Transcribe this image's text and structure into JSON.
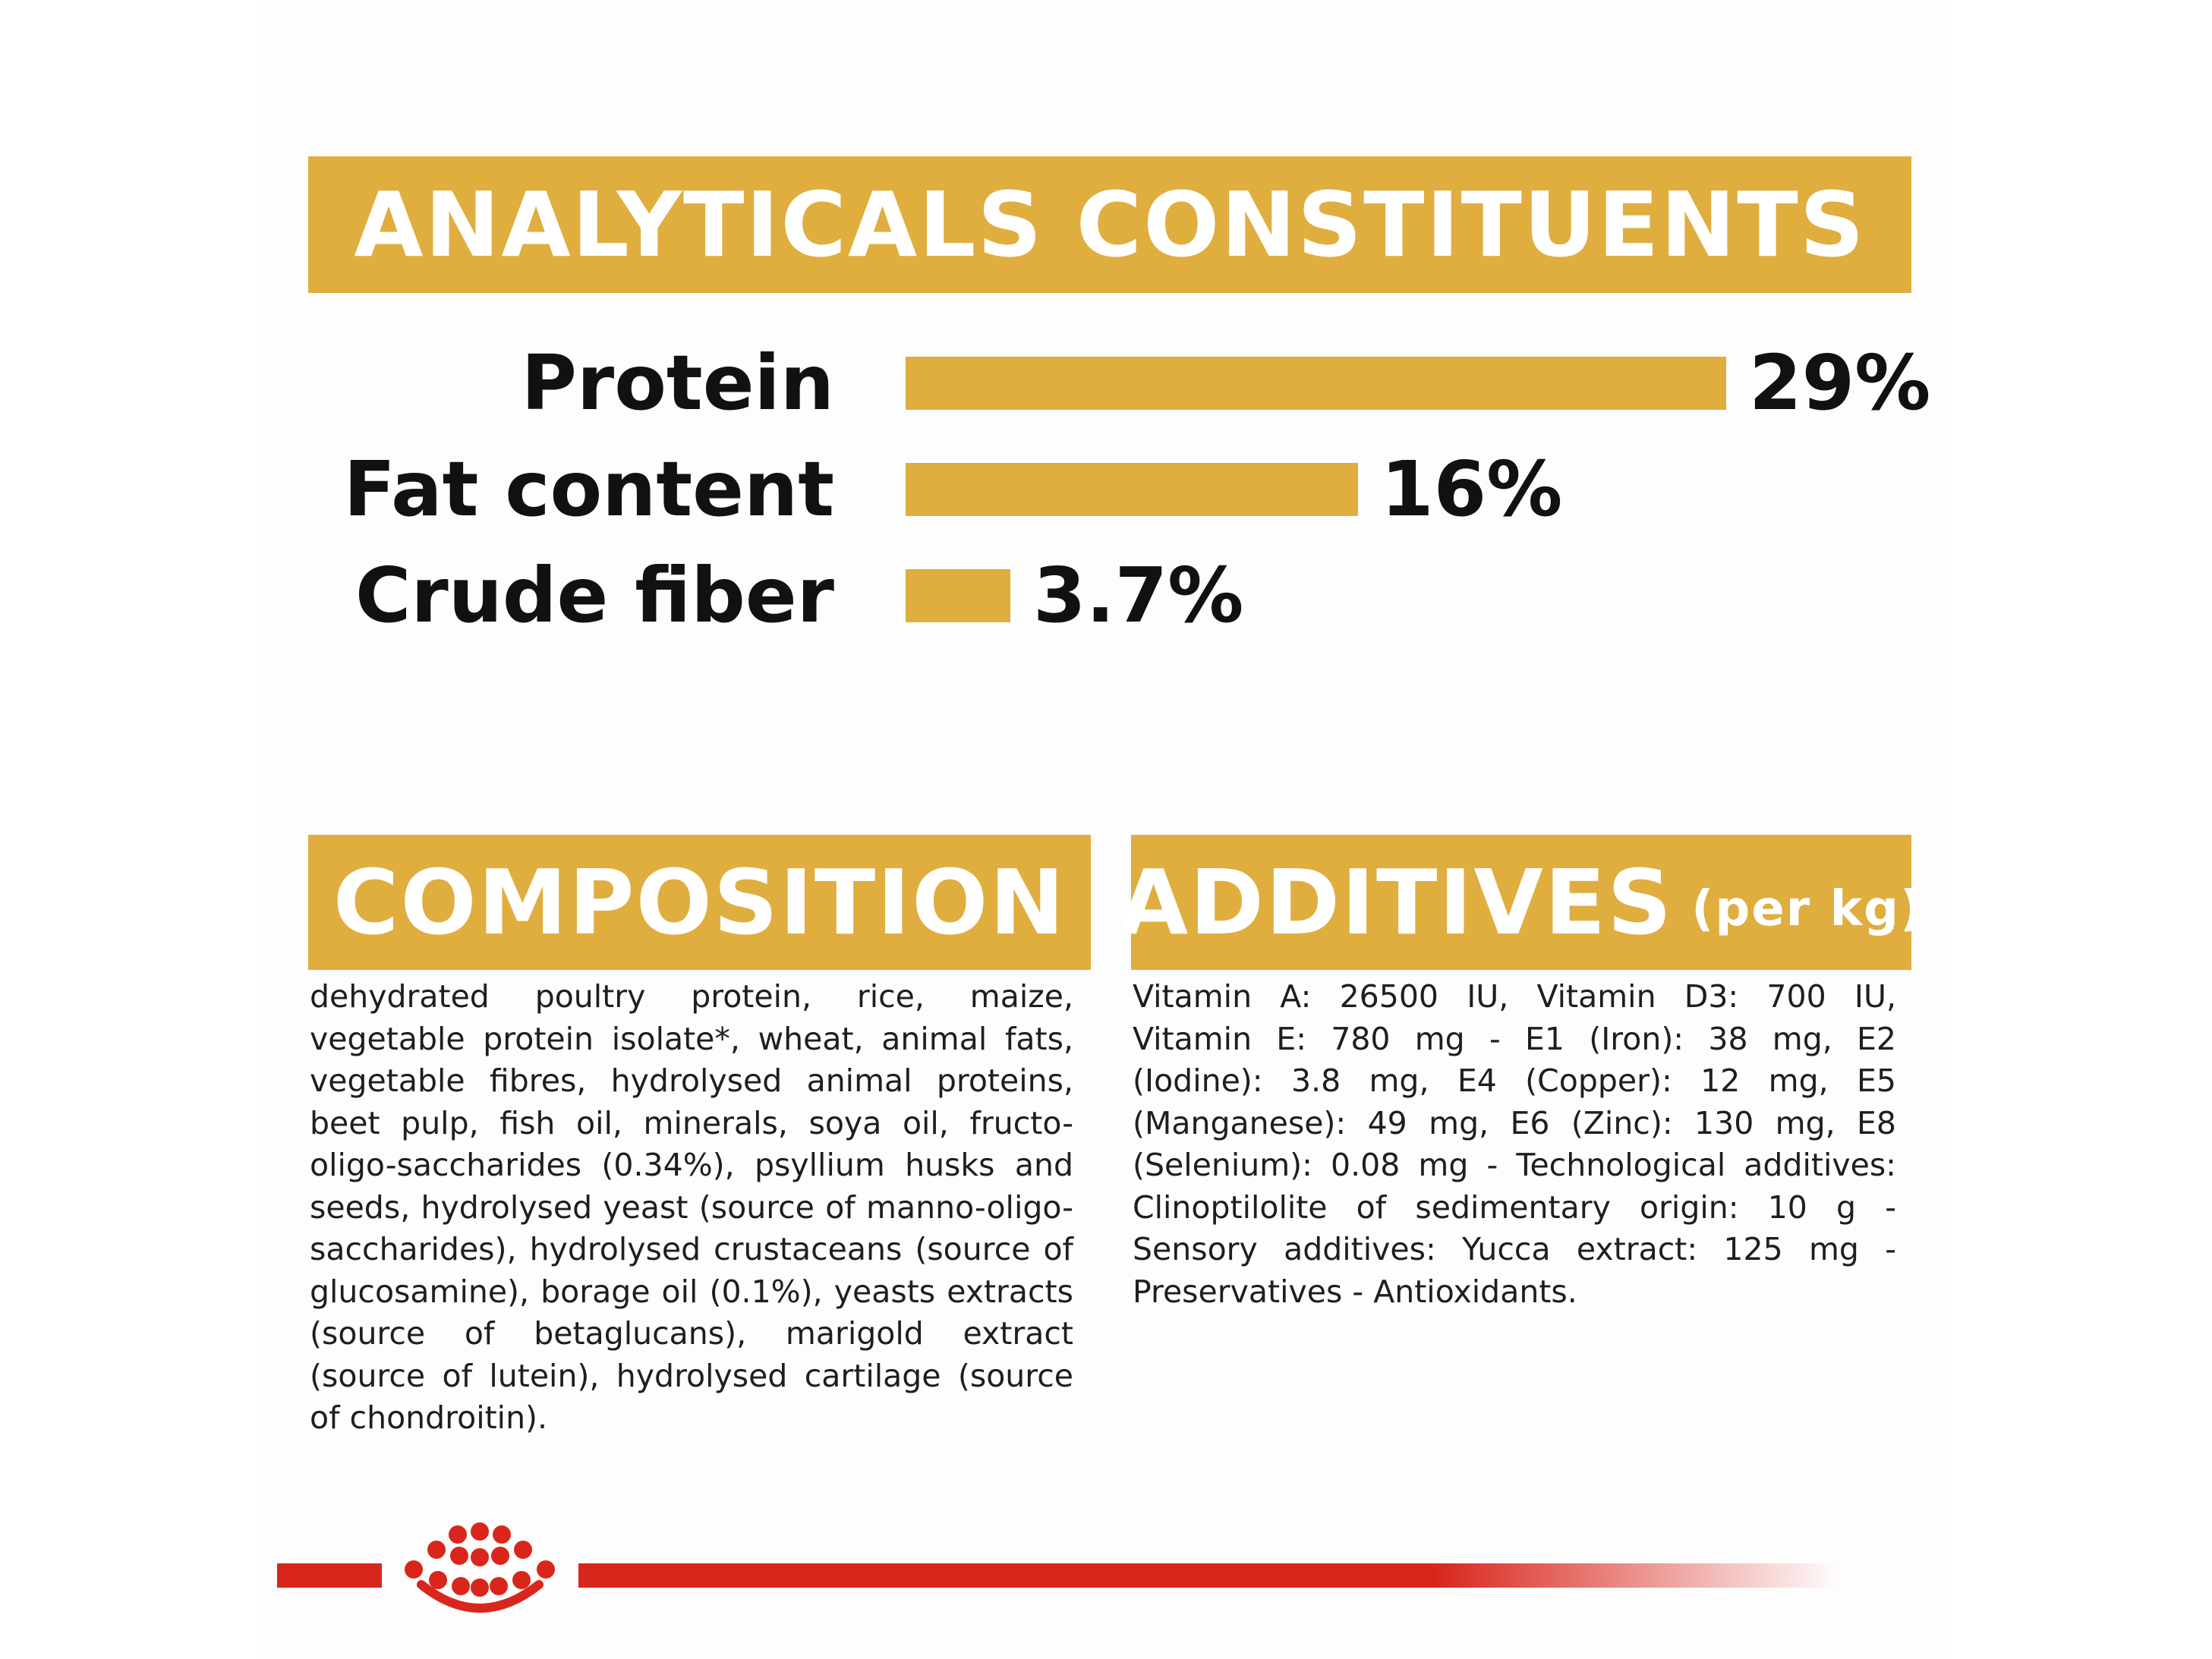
{
  "analytical": {
    "title": "ANALYTICALS CONSTITUENTS"
  },
  "chart_data": {
    "type": "bar",
    "orientation": "horizontal",
    "categories": [
      "Protein",
      "Fat content",
      "Crude fiber"
    ],
    "values": [
      29,
      16,
      3.7
    ],
    "value_labels": [
      "29%",
      "16%",
      "3.7%"
    ],
    "unit": "%",
    "title": "ANALYTICALS CONSTITUENTS",
    "xlabel": "",
    "ylabel": "",
    "xlim": [
      0,
      29
    ],
    "grid": false,
    "legend": "none",
    "bar_color": "#e0ad3f"
  },
  "composition": {
    "title": "COMPOSITION",
    "text": "dehydrated poultry protein, rice, maize, vegetable protein isolate*, wheat, animal fats, vegetable fibres, hydrolysed animal proteins, beet pulp, fish oil, minerals, soya oil, fructo-oligo-saccharides (0.34%), psyllium husks and seeds, hydrolysed yeast (source of manno-oligo-saccharides), hydrolysed crustaceans (source of glucosamine), borage oil (0.1%), yeasts extracts (source of betaglucans), marigold extract (source of lutein), hydrolysed cartilage (source of chondroitin)."
  },
  "additives": {
    "title": "ADDITIVES",
    "title_suffix": "(per kg)",
    "text": "Vitamin A: 26500 IU, Vitamin D3: 700 IU, Vitamin E: 780 mg - E1 (Iron): 38 mg, E2 (Iodine): 3.8 mg, E4 (Copper): 12 mg, E5 (Manganese): 49 mg, E6 (Zinc): 130 mg, E8 (Selenium): 0.08 mg - Technological additives: Clinoptilolite of sedimentary origin: 10 g - Sensory additives: Yucca extract: 125 mg - Preservatives - Antioxidants."
  },
  "brand": {
    "logo_icon": "crown-icon",
    "color": "#d9261c"
  }
}
